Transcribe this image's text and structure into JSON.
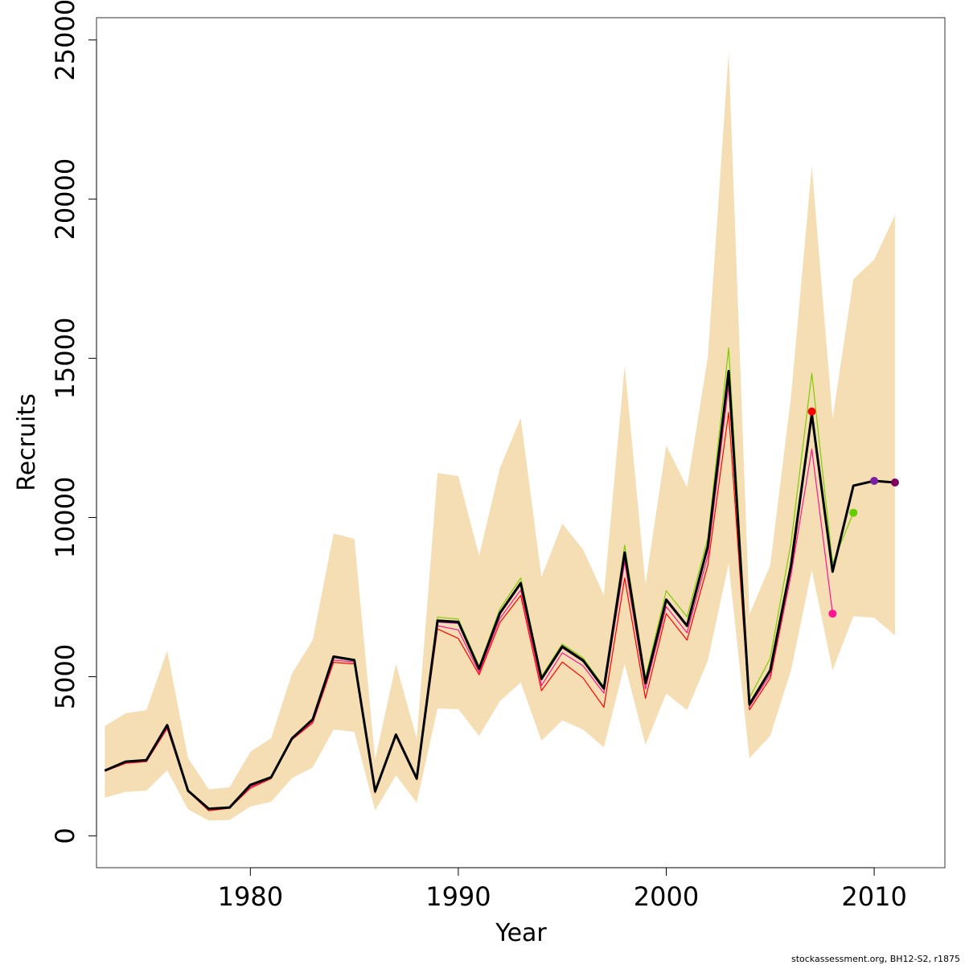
{
  "footer_note": "stockassessment.org, BH12-S2, r1875",
  "chart_data": {
    "type": "line",
    "title": "",
    "xlabel": "Year",
    "ylabel": "Recruits",
    "xlim": [
      1972.6,
      2013.4
    ],
    "ylim": [
      -1000,
      25700
    ],
    "x_ticks": [
      1980,
      1990,
      2000,
      2010
    ],
    "y_ticks": [
      0,
      5000,
      10000,
      15000,
      20000,
      25000
    ],
    "grid": false,
    "legend": "none",
    "band_color": "#F5DEB3",
    "band": {
      "x": [
        1973,
        1974,
        1975,
        1976,
        1977,
        1978,
        1979,
        1980,
        1981,
        1982,
        1983,
        1984,
        1985,
        1986,
        1987,
        1988,
        1989,
        1990,
        1991,
        1992,
        1993,
        1994,
        1995,
        1996,
        1997,
        1998,
        1999,
        2000,
        2001,
        2002,
        2003,
        2004,
        2005,
        2006,
        2007,
        2008,
        2009,
        2010,
        2011
      ],
      "lower": [
        1200,
        1380,
        1420,
        2060,
        830,
        480,
        500,
        920,
        1070,
        1810,
        2150,
        3340,
        3270,
        800,
        1900,
        1040,
        4000,
        3980,
        3140,
        4230,
        4820,
        2990,
        3630,
        3340,
        2780,
        5390,
        2860,
        4470,
        3950,
        5500,
        8550,
        2440,
        3140,
        5200,
        8350,
        5200,
        6900,
        6850,
        6300
      ],
      "upper": [
        3450,
        3850,
        3950,
        5820,
        2450,
        1460,
        1530,
        2640,
        3070,
        5100,
        6150,
        9500,
        9330,
        2400,
        5400,
        3050,
        11400,
        11300,
        8800,
        11550,
        13130,
        8130,
        9810,
        8990,
        7560,
        14770,
        7910,
        12260,
        10950,
        15050,
        24600,
        6960,
        8500,
        13800,
        21050,
        13110,
        17490,
        18100,
        19500
      ]
    },
    "series": [
      {
        "color": "#000000",
        "width": 3,
        "x": [
          1973,
          1974,
          1975,
          1976,
          1977,
          1978,
          1979,
          1980,
          1981,
          1982,
          1983,
          1984,
          1985,
          1986,
          1987,
          1988,
          1989,
          1990,
          1991,
          1992,
          1993,
          1994,
          1995,
          1996,
          1997,
          1998,
          1999,
          2000,
          2001,
          2002,
          2003,
          2004,
          2005,
          2006,
          2007,
          2008,
          2009,
          2010,
          2011
        ],
        "values": [
          2050,
          2330,
          2380,
          3480,
          1420,
          850,
          890,
          1600,
          1840,
          3060,
          3660,
          5630,
          5520,
          1400,
          3180,
          1800,
          6760,
          6720,
          5250,
          7000,
          7940,
          4930,
          5950,
          5510,
          4630,
          8900,
          4800,
          7420,
          6600,
          9100,
          14600,
          4130,
          5200,
          8500,
          13250,
          8300,
          11000,
          11150,
          11100
        ]
      },
      {
        "color": "#8B008B",
        "width": 1.5,
        "x": [
          1973,
          1974,
          1975,
          1976,
          1977,
          1978,
          1979,
          1980,
          1981,
          1982,
          1983,
          1984,
          1985,
          1986,
          1987,
          1988,
          1989,
          1990,
          1991,
          1992,
          1993,
          1994,
          1995,
          1996,
          1997,
          1998,
          1999,
          2000,
          2001,
          2002,
          2003,
          2004,
          2005,
          2006,
          2007,
          2008,
          2009,
          2010,
          2011
        ],
        "values": [
          2050,
          2320,
          2370,
          3460,
          1420,
          850,
          890,
          1590,
          1830,
          3050,
          3650,
          5610,
          5500,
          1400,
          3170,
          1790,
          6720,
          6680,
          5220,
          6960,
          7900,
          4900,
          5910,
          5480,
          4600,
          8850,
          4770,
          7380,
          6570,
          9050,
          14500,
          4110,
          5170,
          8450,
          13200,
          8280,
          10980,
          11150,
          11100
        ]
      },
      {
        "color": "#7CCD00",
        "width": 1.2,
        "x": [
          1973,
          1974,
          1975,
          1976,
          1977,
          1978,
          1979,
          1980,
          1981,
          1982,
          1983,
          1984,
          1985,
          1986,
          1987,
          1988,
          1989,
          1990,
          1991,
          1992,
          1993,
          1994,
          1995,
          1996,
          1997,
          1998,
          1999,
          2000,
          2001,
          2002,
          2003,
          2004,
          2005,
          2006,
          2007,
          2008,
          2009
        ],
        "values": [
          2050,
          2330,
          2390,
          3480,
          1430,
          860,
          900,
          1610,
          1850,
          3070,
          3690,
          5650,
          5550,
          1410,
          3200,
          1810,
          6870,
          6810,
          5330,
          7130,
          8100,
          5010,
          6030,
          5590,
          4690,
          9130,
          4960,
          7700,
          6880,
          9360,
          15330,
          4330,
          5580,
          9200,
          14530,
          8560,
          10150
        ]
      },
      {
        "color": "#FF1493",
        "width": 1.2,
        "x": [
          1973,
          1974,
          1975,
          1976,
          1977,
          1978,
          1979,
          1980,
          1981,
          1982,
          1983,
          1984,
          1985,
          1986,
          1987,
          1988,
          1989,
          1990,
          1991,
          1992,
          1993,
          1994,
          1995,
          1996,
          1997,
          1998,
          1999,
          2000,
          2001,
          2002,
          2003,
          2004,
          2005,
          2006,
          2007,
          2008
        ],
        "values": [
          2040,
          2300,
          2350,
          3400,
          1410,
          830,
          880,
          1540,
          1820,
          3030,
          3600,
          5520,
          5460,
          1380,
          3150,
          1780,
          6600,
          6470,
          5140,
          6830,
          7720,
          4720,
          5750,
          5340,
          4480,
          8600,
          4620,
          7200,
          6380,
          8800,
          14150,
          4060,
          5060,
          8200,
          12150,
          6980
        ]
      },
      {
        "color": "#FF0000",
        "width": 1.2,
        "x": [
          1973,
          1974,
          1975,
          1976,
          1977,
          1978,
          1979,
          1980,
          1981,
          1982,
          1983,
          1984,
          1985,
          1986,
          1987,
          1988,
          1989,
          1990,
          1991,
          1992,
          1993,
          1994,
          1995,
          1996,
          1997,
          1998,
          1999,
          2000,
          2001,
          2002,
          2003,
          2004,
          2005,
          2006,
          2007
        ],
        "values": [
          2030,
          2280,
          2330,
          3370,
          1400,
          790,
          870,
          1500,
          1800,
          3020,
          3550,
          5450,
          5400,
          1350,
          3130,
          1760,
          6500,
          6200,
          5060,
          6700,
          7550,
          4560,
          5460,
          4960,
          4040,
          8100,
          4320,
          6980,
          6150,
          8500,
          13300,
          3960,
          4950,
          8200,
          13330
        ]
      }
    ],
    "endpoints": [
      {
        "x": 2007,
        "y": 13330,
        "color": "#FF0000"
      },
      {
        "x": 2008,
        "y": 6980,
        "color": "#FF1493"
      },
      {
        "x": 2009,
        "y": 10150,
        "color": "#66CD00"
      },
      {
        "x": 2010,
        "y": 11150,
        "color": "#7B1FA2"
      },
      {
        "x": 2011,
        "y": 11100,
        "color": "#800060"
      }
    ]
  }
}
